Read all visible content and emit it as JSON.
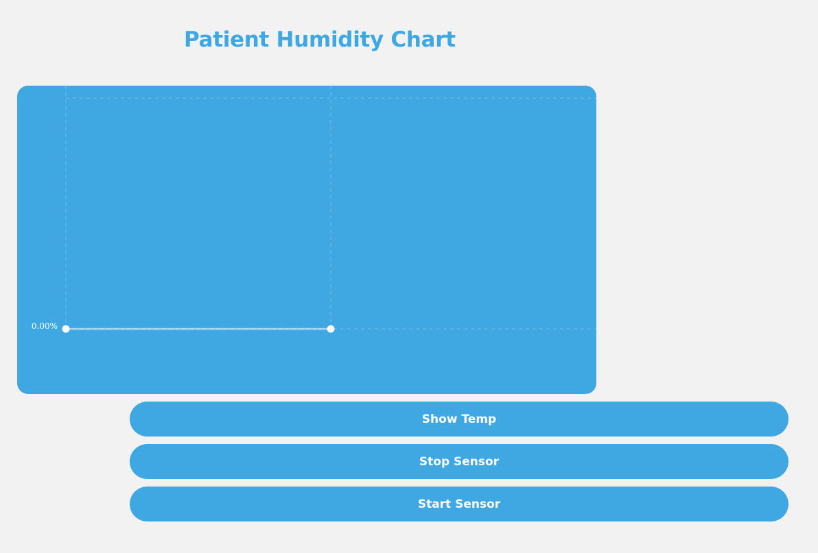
{
  "page": {
    "title": "Patient Humidity Chart"
  },
  "buttons": {
    "show_temp": "Show Temp",
    "stop_sensor": "Stop Sensor",
    "start_sensor": "Start Sensor"
  },
  "colors": {
    "accent": "#3fa7e1",
    "background": "#f2f2f3",
    "point": "#ffffff"
  },
  "chart_data": {
    "type": "line",
    "title": "",
    "xlabel": "",
    "ylabel": "",
    "y_tick_labels": [
      "0.00%"
    ],
    "series": [
      {
        "values": [
          0,
          0
        ]
      }
    ],
    "grid": true
  }
}
